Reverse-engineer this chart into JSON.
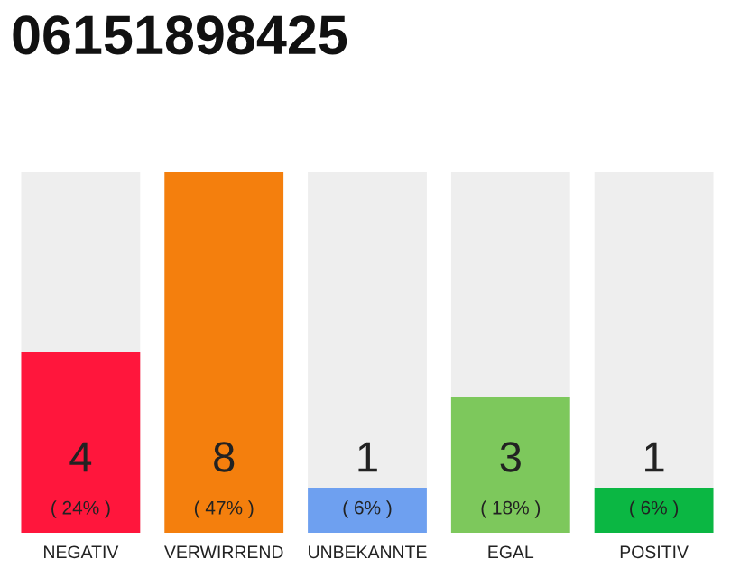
{
  "chart_data": {
    "type": "bar",
    "title": "06151898425",
    "categories": [
      "NEGATIV",
      "VERWIRREND",
      "UNBEKANNTE",
      "EGAL",
      "POSITIV"
    ],
    "values": [
      4,
      8,
      1,
      3,
      1
    ],
    "colors": [
      "#ff163c",
      "#f47f0d",
      "#6ea0f0",
      "#7dc85c",
      "#0bb743"
    ],
    "ylim": [
      0,
      8
    ],
    "data_labels": true,
    "annotations": [
      "( 24% )",
      "( 47% )",
      "( 6% )",
      "( 18% )",
      "( 6% )"
    ],
    "grid": false,
    "legend": false
  }
}
